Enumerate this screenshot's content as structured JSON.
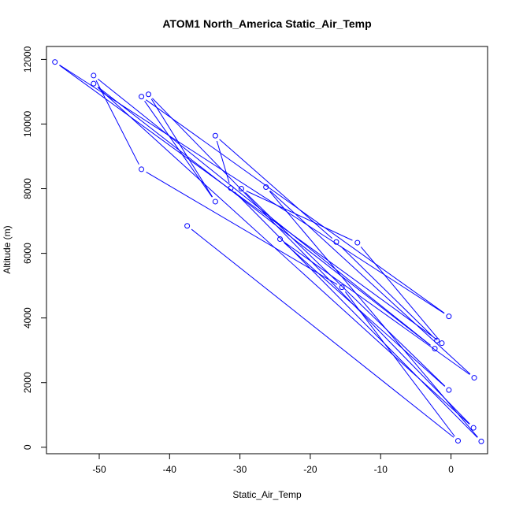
{
  "chart_data": {
    "type": "line",
    "title": "ATOM1 North_America Static_Air_Temp",
    "xlabel": "Static_Air_Temp",
    "ylabel": "Altitude (m)",
    "xlim": [
      -57.5,
      5.2
    ],
    "ylim": [
      -200,
      12400
    ],
    "xticks": [
      -50,
      -40,
      -30,
      -20,
      -10,
      0
    ],
    "yticks": [
      0,
      2000,
      4000,
      6000,
      8000,
      10000,
      12000
    ],
    "grid": false,
    "line_color": "#0000ff",
    "marker": "open-circle",
    "series": [
      {
        "x": [
          -37.5,
          1.0,
          -15.5,
          -44.0,
          -50.8,
          -2.3,
          -50.8,
          3.2,
          -43.0,
          -33.5,
          -44.0,
          -0.3,
          -56.3,
          -1.3,
          -13.3,
          -29.8,
          -0.3,
          -24.3,
          3.3,
          -26.3,
          4.3,
          -31.3,
          -33.5,
          -16.3,
          -2.0
        ],
        "y": [
          6850,
          200,
          4950,
          8600,
          11500,
          3050,
          11250,
          600,
          10920,
          7600,
          10850,
          4050,
          11920,
          3220,
          6330,
          8000,
          1770,
          6440,
          2150,
          8050,
          180,
          8020,
          9640,
          6350,
          3300
        ]
      }
    ]
  }
}
